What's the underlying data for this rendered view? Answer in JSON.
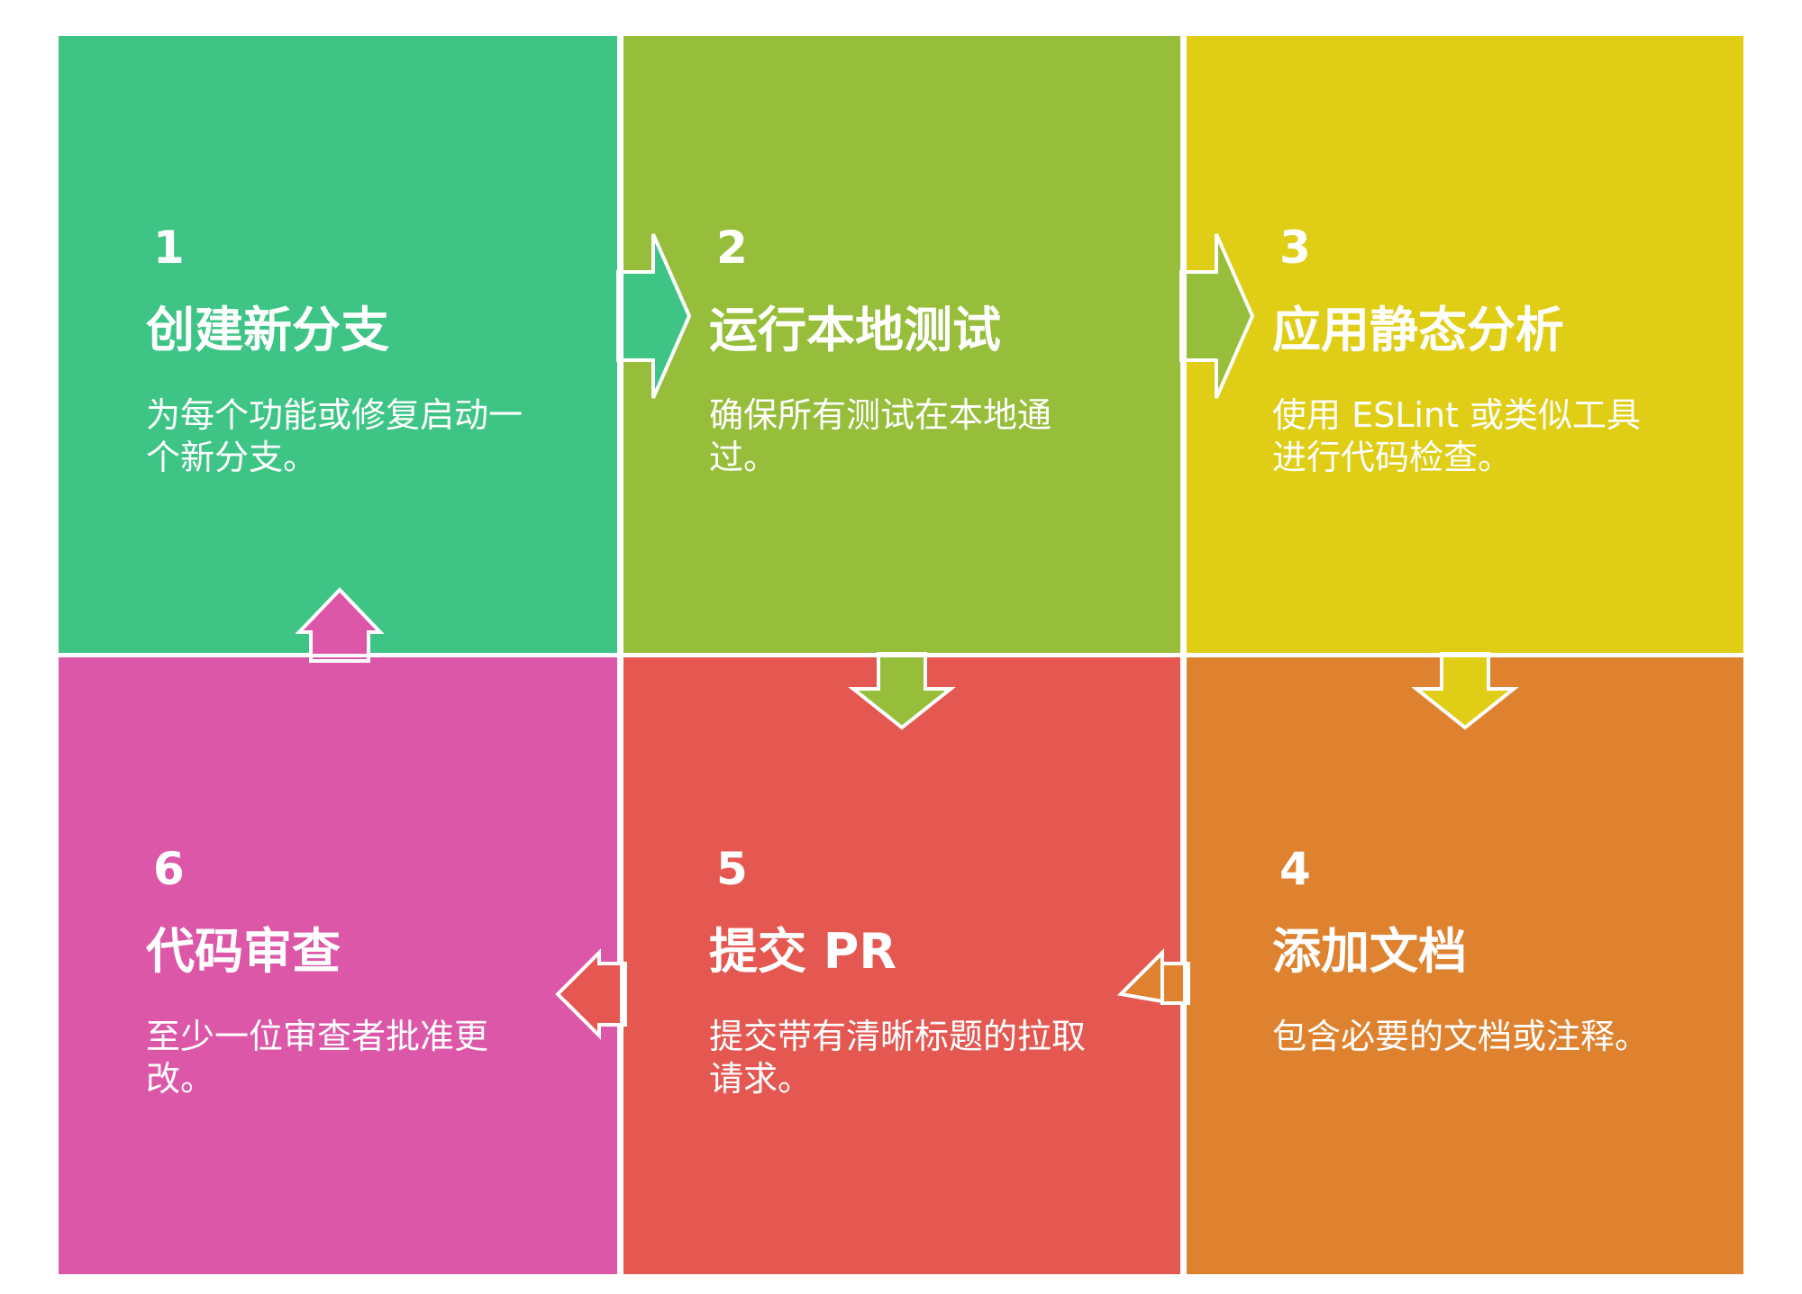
{
  "steps": [
    {
      "number": "1",
      "title": "创建新分支",
      "description": "为每个功能或修复启动一个新分支。",
      "color": "#3ec586"
    },
    {
      "number": "2",
      "title": "运行本地测试",
      "description": "确保所有测试在本地通过。",
      "color": "#96be3b"
    },
    {
      "number": "3",
      "title": "应用静态分析",
      "description": "使用 ESLint 或类似工具进行代码检查。",
      "color": "#dfcd16"
    },
    {
      "number": "4",
      "title": "添加文档",
      "description": "包含必要的文档或注释。",
      "color": "#df8230"
    },
    {
      "number": "5",
      "title": "提交 PR",
      "description": "提交带有清晰标题的拉取请求。",
      "color": "#e45851"
    },
    {
      "number": "6",
      "title": "代码审查",
      "description": "至少一位审查者批准更改。",
      "color": "#dd57a8"
    }
  ],
  "connectors": [
    {
      "from": "1",
      "to": "2",
      "direction": "right",
      "color": "#3ec586"
    },
    {
      "from": "2",
      "to": "3",
      "direction": "right",
      "color": "#96be3b"
    },
    {
      "from": "2",
      "to": "5",
      "direction": "down",
      "color": "#96be3b"
    },
    {
      "from": "3",
      "to": "4",
      "direction": "down",
      "color": "#dfcd16"
    },
    {
      "from": "4",
      "to": "5",
      "direction": "left",
      "color": "#df8230"
    },
    {
      "from": "5",
      "to": "6",
      "direction": "left",
      "color": "#e45851"
    },
    {
      "from": "6",
      "to": "1",
      "direction": "up",
      "color": "#dd57a8"
    }
  ]
}
